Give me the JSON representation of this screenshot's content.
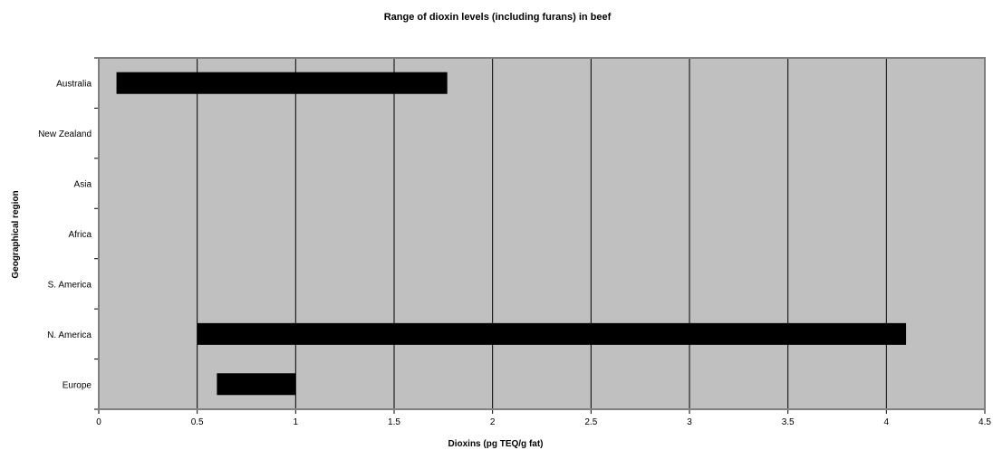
{
  "chart_data": {
    "type": "bar",
    "orientation": "horizontal",
    "style": "floating-range",
    "title": "Range of dioxin levels (including furans) in beef",
    "xlabel": "Dioxins (pg TEQ/g fat)",
    "ylabel": "Geographical region",
    "categories": [
      "Australia",
      "New Zealand",
      "Asia",
      "Africa",
      "S. America",
      "N. America",
      "Europe"
    ],
    "series": [
      {
        "ranges": [
          [
            0.09,
            1.77
          ],
          null,
          null,
          null,
          null,
          [
            0.5,
            4.1
          ],
          [
            0.6,
            1.0
          ]
        ]
      }
    ],
    "xlim": [
      0,
      4.5
    ],
    "x_ticks": [
      "0",
      "0.5",
      "1",
      "1.5",
      "2",
      "2.5",
      "3",
      "3.5",
      "4",
      "4.5"
    ],
    "grid": "vertical",
    "legend": "none",
    "colors": {
      "plot_background": "#c0c0c0",
      "bar": "#000000",
      "gridline": "#000000",
      "frame": "#808080"
    }
  }
}
